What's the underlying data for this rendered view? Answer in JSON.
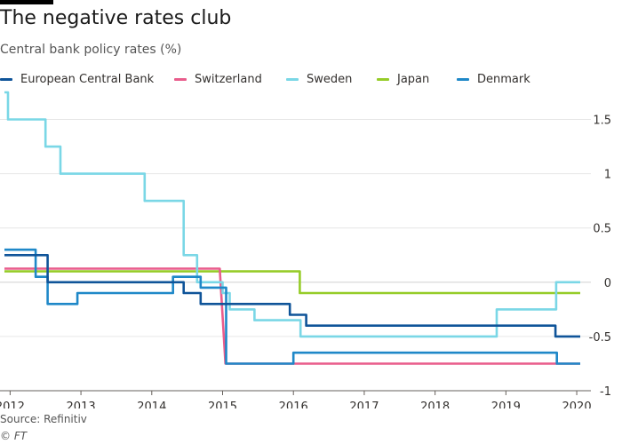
{
  "title": "The negative rates club",
  "subtitle": "Central bank policy rates (%)",
  "source": "Source: Refinitiv",
  "credit": "© FT",
  "legend": [
    {
      "label": "European Central Bank",
      "color": "#0f5499"
    },
    {
      "label": "Switzerland",
      "color": "#e95d8c"
    },
    {
      "label": "Sweden",
      "color": "#7ad7e6"
    },
    {
      "label": "Japan",
      "color": "#96cc28"
    },
    {
      "label": "Denmark",
      "color": "#1f88c8"
    }
  ],
  "chart_data": {
    "type": "line",
    "title": "The negative rates club",
    "subtitle": "Central bank policy rates (%)",
    "xlabel": "",
    "ylabel": "",
    "xlim": [
      2011.92,
      2020.2
    ],
    "ylim": [
      -1,
      1.75
    ],
    "x_ticks": [
      2012,
      2013,
      2014,
      2015,
      2016,
      2017,
      2018,
      2019,
      2020
    ],
    "y_ticks": [
      1.5,
      1,
      0.5,
      0,
      -0.5,
      -1
    ],
    "y_tick_labels": [
      "1.5",
      "1",
      "0.5",
      "0",
      "-0.5",
      "-1"
    ],
    "grid": "horizontal",
    "y_axis_side": "right",
    "legend_position": "top",
    "series": [
      {
        "name": "European Central Bank",
        "color": "#0f5499",
        "x": [
          2011.92,
          2012.53,
          2012.53,
          2013.34,
          2013.34,
          2013.86,
          2013.86,
          2014.45,
          2014.45,
          2014.69,
          2014.69,
          2015.95,
          2015.95,
          2016.18,
          2016.18,
          2019.7,
          2019.7,
          2020.05
        ],
        "y": [
          0.25,
          0.25,
          0.0,
          0.0,
          0.0,
          0.0,
          0.0,
          0.0,
          -0.1,
          -0.1,
          -0.2,
          -0.2,
          -0.3,
          -0.3,
          -0.4,
          -0.4,
          -0.5,
          -0.5
        ]
      },
      {
        "name": "Switzerland",
        "color": "#e95d8c",
        "x": [
          2011.92,
          2014.96,
          2015.04,
          2015.04,
          2020.05
        ],
        "y": [
          0.125,
          0.125,
          -0.75,
          -0.75,
          -0.75
        ]
      },
      {
        "name": "Sweden",
        "color": "#7ad7e6",
        "x": [
          2011.92,
          2011.97,
          2011.97,
          2012.5,
          2012.5,
          2012.71,
          2012.71,
          2012.94,
          2012.94,
          2013.9,
          2013.9,
          2014.45,
          2014.45,
          2014.64,
          2014.64,
          2014.76,
          2014.76,
          2015.0,
          2015.0,
          2015.1,
          2015.1,
          2015.45,
          2015.45,
          2016.1,
          2016.1,
          2018.87,
          2018.87,
          2019.71,
          2019.71,
          2020.05
        ],
        "y": [
          1.75,
          1.75,
          1.5,
          1.5,
          1.25,
          1.25,
          1.0,
          1.0,
          1.0,
          1.0,
          0.75,
          0.75,
          0.25,
          0.25,
          0.0,
          0.0,
          0.0,
          0.0,
          -0.1,
          -0.1,
          -0.25,
          -0.25,
          -0.35,
          -0.35,
          -0.5,
          -0.5,
          -0.25,
          -0.25,
          0.0,
          0.0
        ]
      },
      {
        "name": "Japan",
        "color": "#96cc28",
        "x": [
          2011.92,
          2016.09,
          2016.09,
          2020.05
        ],
        "y": [
          0.1,
          0.1,
          -0.1,
          -0.1
        ]
      },
      {
        "name": "Denmark",
        "color": "#1f88c8",
        "x": [
          2011.92,
          2012.36,
          2012.36,
          2012.53,
          2012.53,
          2012.95,
          2012.95,
          2014.3,
          2014.3,
          2014.69,
          2014.69,
          2015.05,
          2015.05,
          2016.0,
          2016.0,
          2019.72,
          2019.72,
          2020.05
        ],
        "y": [
          0.3,
          0.3,
          0.05,
          0.05,
          -0.2,
          -0.2,
          -0.1,
          -0.1,
          0.05,
          0.05,
          -0.05,
          -0.05,
          -0.75,
          -0.75,
          -0.65,
          -0.65,
          -0.75,
          -0.75
        ]
      }
    ]
  }
}
